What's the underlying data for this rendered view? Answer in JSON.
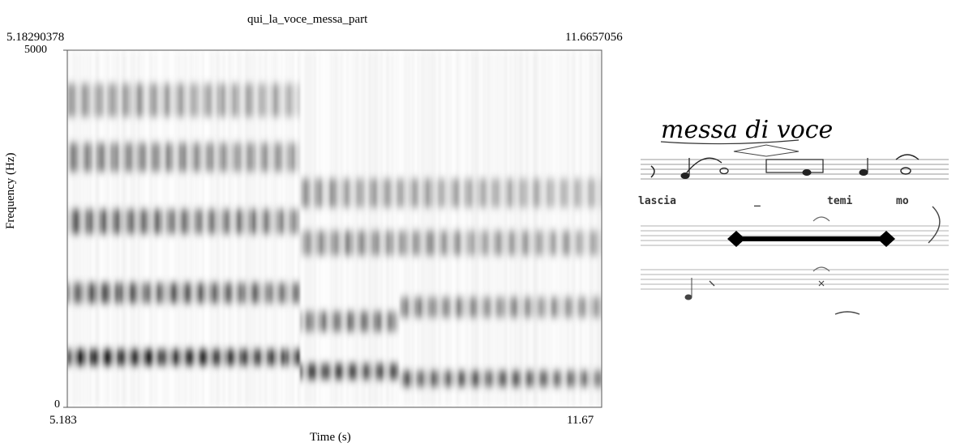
{
  "figure": {
    "title": "qui_la_voce_messa_part",
    "range_start_label": "5.18290378",
    "range_end_label": "11.6657056",
    "x_axis_label": "Time (s)",
    "y_axis_label": "Frequency (Hz)"
  },
  "chart_data": {
    "type": "heatmap",
    "title": "qui_la_voce_messa_part",
    "xlabel": "Time (s)",
    "ylabel": "Frequency (Hz)",
    "xlim": [
      5.183,
      11.67
    ],
    "ylim": [
      0,
      5000
    ],
    "x_ticks": [
      "5.183",
      "11.67"
    ],
    "y_ticks": [
      "0",
      "5000"
    ],
    "colormap": "grayscale (dark = high energy)",
    "formant_bands_hz": [
      {
        "segment": "5.183-8.0 s",
        "bands": [
          700,
          1600,
          2600,
          3500,
          4300
        ]
      },
      {
        "segment": "8.0-9.2 s",
        "bands": [
          500,
          1200,
          2300,
          3000
        ]
      },
      {
        "segment": "9.2-11.67 s",
        "bands": [
          400,
          1400,
          2300,
          3000
        ]
      }
    ]
  },
  "score": {
    "title": "messa di voce",
    "lyrics": [
      "lascia",
      "_",
      "temi",
      "mo"
    ]
  },
  "colors": {
    "background": "#ffffff",
    "ink": "#000000",
    "bar": "#000000"
  }
}
